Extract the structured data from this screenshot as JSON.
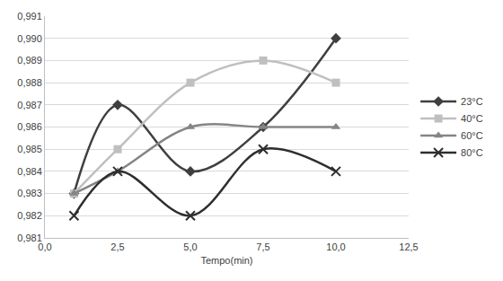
{
  "chart_data": {
    "type": "line",
    "x_label": "Tempo(min)",
    "x": [
      1,
      2.5,
      5,
      7.5,
      10
    ],
    "series": [
      {
        "name": "23°C",
        "color": "#3f3f3f",
        "marker": "diamond",
        "values": [
          0.983,
          0.987,
          0.984,
          0.986,
          0.99
        ]
      },
      {
        "name": "40°C",
        "color": "#bfbfbf",
        "marker": "square",
        "values": [
          0.983,
          0.985,
          0.988,
          0.989,
          0.988
        ]
      },
      {
        "name": "60°C",
        "color": "#858585",
        "marker": "triangle",
        "values": [
          0.983,
          0.984,
          0.986,
          0.986,
          0.986
        ]
      },
      {
        "name": "80°C",
        "color": "#2e2e2e",
        "marker": "x",
        "values": [
          0.982,
          0.984,
          0.982,
          0.985,
          0.984
        ]
      }
    ],
    "line_style": "smooth",
    "xlim": [
      0,
      12.5
    ],
    "xticks": [
      {
        "value": 0,
        "label": "0,0"
      },
      {
        "value": 2.5,
        "label": "2,5"
      },
      {
        "value": 5,
        "label": "5,0"
      },
      {
        "value": 7.5,
        "label": "7,5"
      },
      {
        "value": 10,
        "label": "10,0"
      },
      {
        "value": 12.5,
        "label": "12,5"
      }
    ],
    "ylim": [
      0.981,
      0.991
    ],
    "yticks": [
      {
        "value": 0.981,
        "label": "0,981"
      },
      {
        "value": 0.982,
        "label": "0,982"
      },
      {
        "value": 0.983,
        "label": "0,983"
      },
      {
        "value": 0.984,
        "label": "0,984"
      },
      {
        "value": 0.985,
        "label": "0,985"
      },
      {
        "value": 0.986,
        "label": "0,986"
      },
      {
        "value": 0.987,
        "label": "0,987"
      },
      {
        "value": 0.988,
        "label": "0,988"
      },
      {
        "value": 0.989,
        "label": "0,989"
      },
      {
        "value": 0.99,
        "label": "0,990"
      },
      {
        "value": 0.991,
        "label": "0,991"
      }
    ],
    "grid": "y",
    "legend": "right"
  }
}
